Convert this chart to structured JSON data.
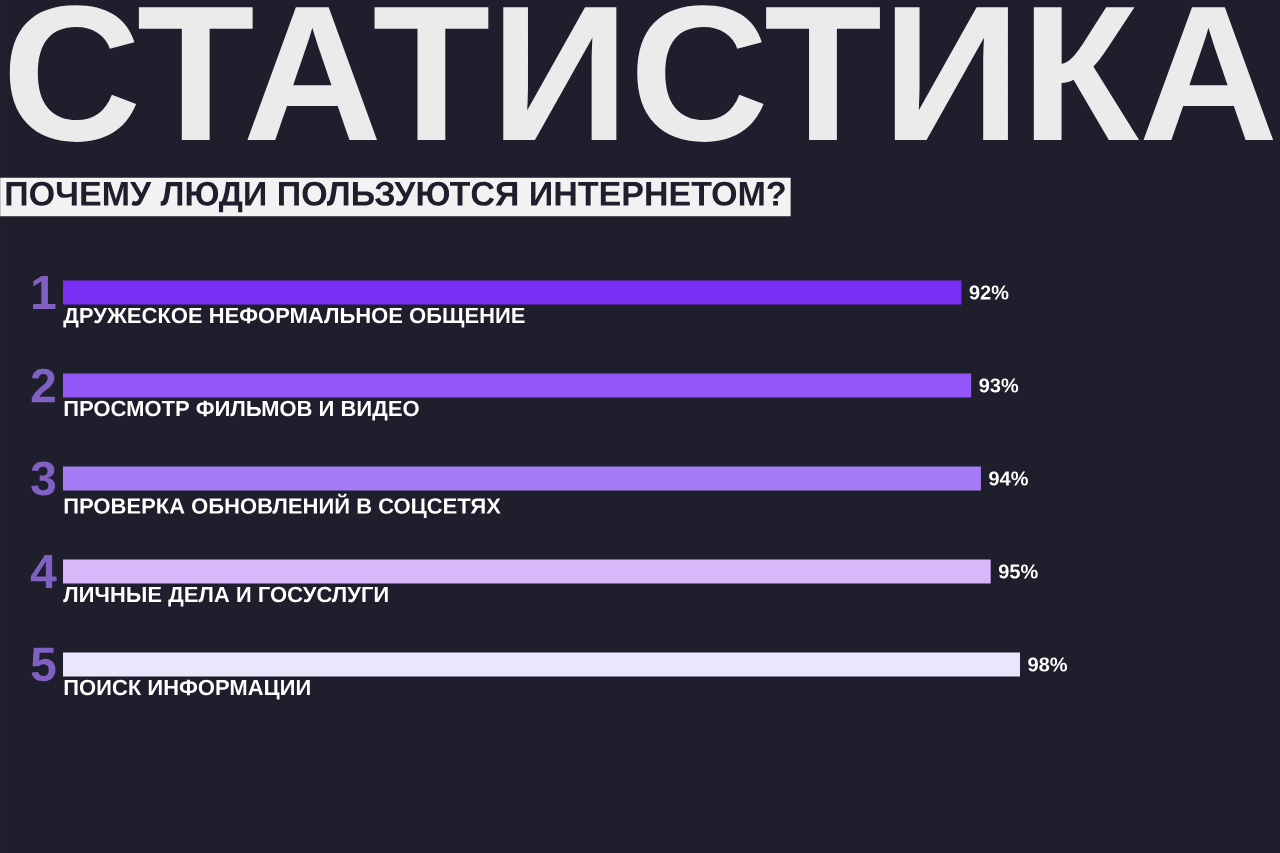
{
  "chart_data": {
    "type": "bar",
    "orientation": "horizontal",
    "title": "СТАТИСТИКА",
    "subtitle": "ПОЧЕМУ ЛЮДИ ПОЛЬЗУЮТСЯ ИНТЕРНЕТОМ?",
    "categories": [
      "ДРУЖЕСКОЕ НЕФОРМАЛЬНОЕ ОБЩЕНИЕ",
      "ПРОСМОТР ФИЛЬМОВ И ВИДЕО",
      "ПРОВЕРКА ОБНОВЛЕНИЙ В СОЦСЕТЯХ",
      "ЛИЧНЫЕ ДЕЛА И ГОСУСЛУГИ",
      "ПОИСК ИНФОРМАЦИИ"
    ],
    "values": [
      92,
      93,
      94,
      95,
      98
    ],
    "value_labels": [
      "92%",
      "93%",
      "94%",
      "95%",
      "98%"
    ],
    "colors": [
      "#7a2ff5",
      "#9457f7",
      "#a57cf6",
      "#d6b8fb",
      "#ece6fd"
    ],
    "annotations": [
      "1",
      "2",
      "3",
      "4",
      "5"
    ]
  }
}
